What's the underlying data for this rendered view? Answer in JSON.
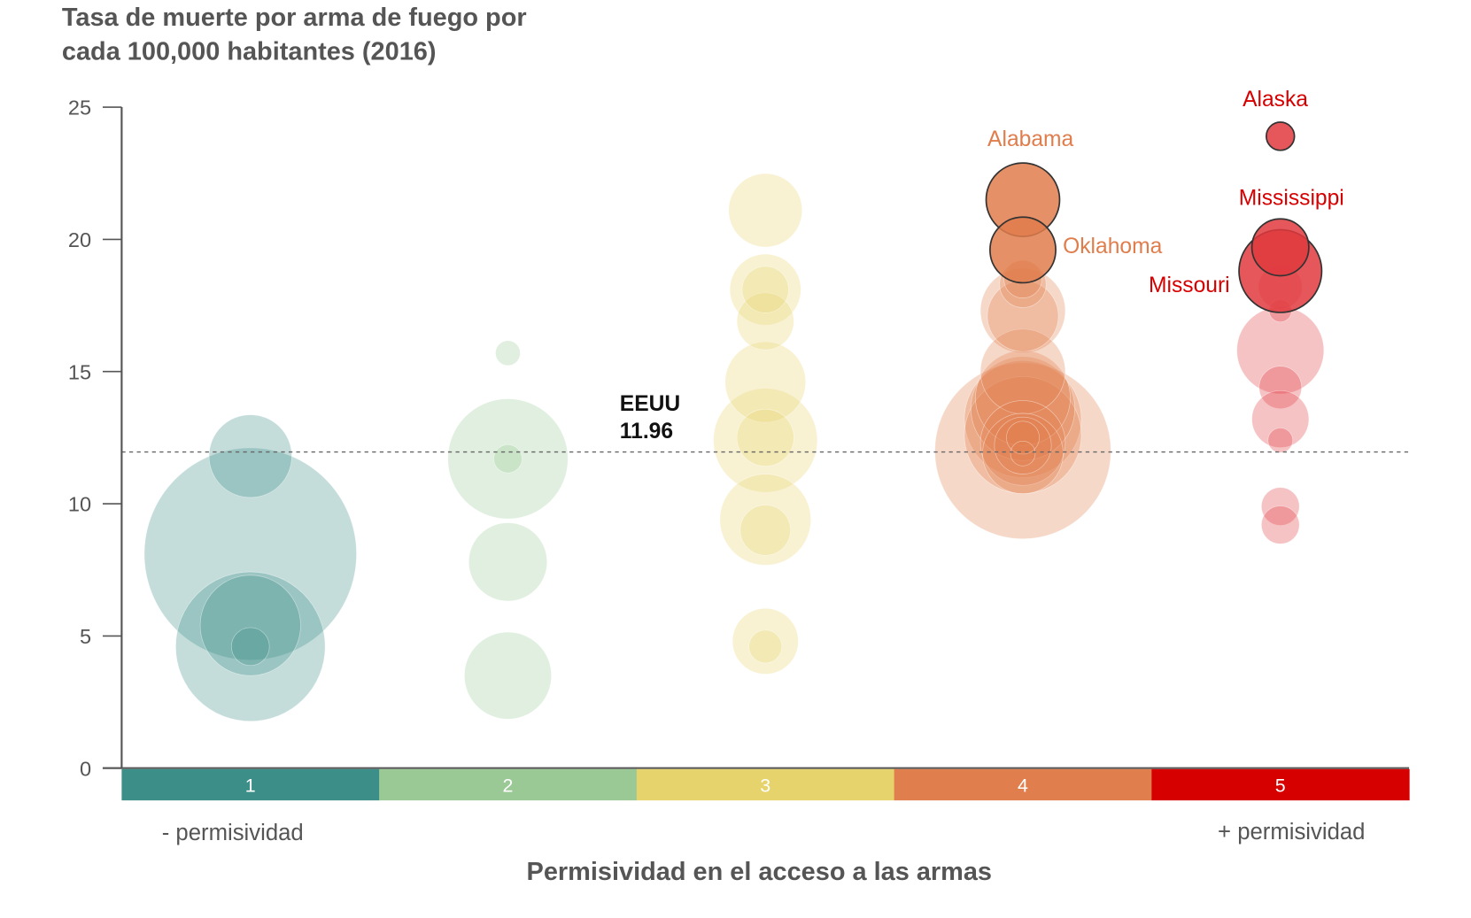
{
  "chart_data": {
    "type": "scatter",
    "subtype": "bubble",
    "title_line1": "Tasa de muerte por arma de fuego por",
    "title_line2": "cada 100,000 habitantes (2016)",
    "xlabel": "Permisividad en el acceso a las armas",
    "ylabel": "",
    "ylim": [
      0,
      25
    ],
    "yticks": [
      0,
      5,
      10,
      15,
      20,
      25
    ],
    "categories": [
      "1",
      "2",
      "3",
      "4",
      "5"
    ],
    "category_colors": [
      "#3c8f88",
      "#9ac996",
      "#e7d36c",
      "#e07e4d",
      "#d70000"
    ],
    "bubble_colors": [
      "#3d8f87",
      "#98c995",
      "#e8d56c",
      "#e07d4c",
      "#e0393e"
    ],
    "left_note": "- permisividad",
    "right_note": "+ permisividad",
    "reference": {
      "label": "EEUU",
      "value": 11.96,
      "value_label": "11.96"
    },
    "series": [
      {
        "category": "1",
        "points": [
          {
            "y": 8.1,
            "size": 125
          },
          {
            "y": 4.6,
            "size": 62
          },
          {
            "y": 11.8,
            "size": 19
          },
          {
            "y": 5.4,
            "size": 28
          },
          {
            "y": 4.6,
            "size": 4
          }
        ]
      },
      {
        "category": "2",
        "points": [
          {
            "y": 11.7,
            "size": 40
          },
          {
            "y": 3.5,
            "size": 21
          },
          {
            "y": 7.8,
            "size": 17
          },
          {
            "y": 15.7,
            "size": 1.7
          },
          {
            "y": 11.7,
            "size": 2.2
          }
        ]
      },
      {
        "category": "3",
        "points": [
          {
            "y": 12.4,
            "size": 30
          },
          {
            "y": 9.4,
            "size": 23
          },
          {
            "y": 14.6,
            "size": 18
          },
          {
            "y": 21.1,
            "size": 15
          },
          {
            "y": 18.1,
            "size": 14
          },
          {
            "y": 4.8,
            "size": 12
          },
          {
            "y": 16.9,
            "size": 9
          },
          {
            "y": 12.5,
            "size": 9
          },
          {
            "y": 9.0,
            "size": 7
          },
          {
            "y": 18.1,
            "size": 6
          },
          {
            "y": 4.6,
            "size": 3
          }
        ]
      },
      {
        "category": "4",
        "points": [
          {
            "y": 12.0,
            "size": 86
          },
          {
            "y": 13.2,
            "size": 38
          },
          {
            "y": 12.6,
            "size": 38
          },
          {
            "y": 13.6,
            "size": 30
          },
          {
            "y": 14.0,
            "size": 25
          },
          {
            "y": 17.3,
            "size": 20
          },
          {
            "y": 15.0,
            "size": 20
          },
          {
            "y": 12.3,
            "size": 20
          },
          {
            "y": 11.9,
            "size": 18
          },
          {
            "y": 17.1,
            "size": 14
          },
          {
            "y": 12.2,
            "size": 9
          },
          {
            "y": 18.3,
            "size": 6
          },
          {
            "y": 18.5,
            "size": 4
          },
          {
            "y": 12.5,
            "size": 3
          },
          {
            "y": 11.9,
            "size": 1.7
          },
          {
            "y": 21.5,
            "size": 15,
            "label": "Alabama",
            "highlight": true
          },
          {
            "y": 19.6,
            "size": 12,
            "label": "Oklahoma",
            "highlight": true
          }
        ]
      },
      {
        "category": "5",
        "points": [
          {
            "y": 15.8,
            "size": 21
          },
          {
            "y": 14.4,
            "size": 5
          },
          {
            "y": 13.2,
            "size": 9
          },
          {
            "y": 12.4,
            "size": 1.7
          },
          {
            "y": 9.9,
            "size": 4
          },
          {
            "y": 9.2,
            "size": 4
          },
          {
            "y": 18.8,
            "size": 19,
            "label": "Missouri",
            "highlight": true
          },
          {
            "y": 19.7,
            "size": 9,
            "label": "Mississippi",
            "highlight": true
          },
          {
            "y": 18.2,
            "size": 5.3
          },
          {
            "y": 17.3,
            "size": 1.4
          },
          {
            "y": 23.9,
            "size": 2.2,
            "label": "Alaska",
            "highlight": true
          }
        ]
      }
    ],
    "annotations": {
      "alabama": "Alabama",
      "oklahoma": "Oklahoma",
      "alaska": "Alaska",
      "mississippi": "Mississippi",
      "missouri": "Missouri"
    },
    "annotation_colors": {
      "orange": "#e07d4c",
      "red": "#d70000"
    }
  }
}
